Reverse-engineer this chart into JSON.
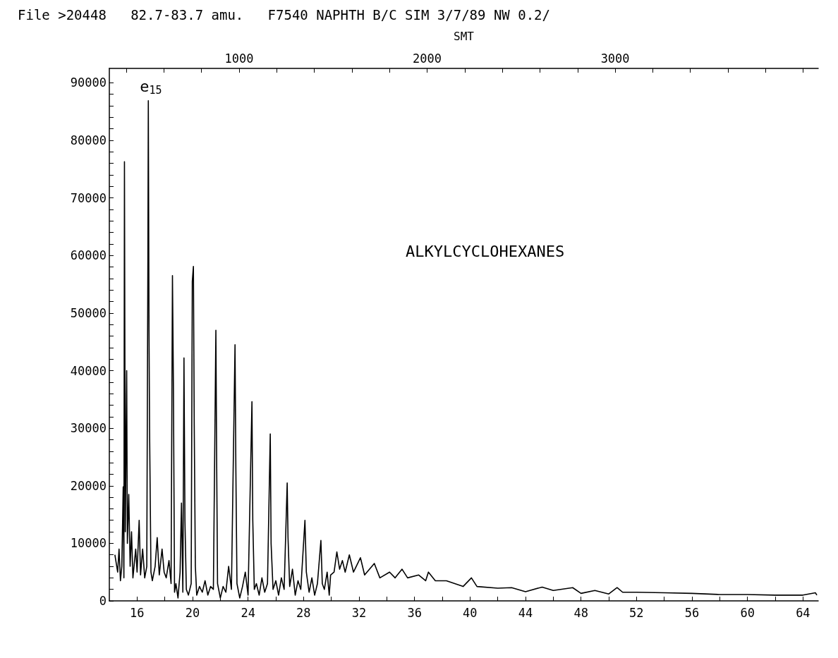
{
  "chart_data": {
    "type": "line",
    "title": "File >20448   82.7-83.7 amu.   F7540 NAPHTH B/C SIM 3/7/89 NW 0.2/",
    "x2label": "SMT",
    "marker": "none",
    "line_style": "solid",
    "annotations": [
      {
        "text": "e$_{15}$",
        "x": 16.81,
        "y": 86900
      },
      "ALKYLCYCLOHEXANES"
    ],
    "xlim": [
      14.0,
      65.1
    ],
    "xticks": [
      16,
      {
        "value": 18,
        "label": null
      },
      20,
      {
        "value": 22,
        "label": null
      },
      24,
      {
        "value": 26,
        "label": null
      },
      28,
      {
        "value": 30,
        "label": null
      },
      32,
      {
        "value": 34,
        "label": null
      },
      36,
      {
        "value": 38,
        "label": null
      },
      40,
      {
        "value": 42,
        "label": null
      },
      44,
      {
        "value": 46,
        "label": null
      },
      48,
      {
        "value": 50,
        "label": null
      },
      52,
      {
        "value": 54,
        "label": null
      },
      56,
      {
        "value": 58,
        "label": null
      },
      60,
      {
        "value": 62,
        "label": null
      },
      64
    ],
    "x2lim": [
      310,
      4080
    ],
    "x2ticks": [
      {
        "value": 400,
        "label": null
      },
      {
        "value": 600,
        "label": null
      },
      {
        "value": 800,
        "label": null
      },
      1000,
      {
        "value": 1200,
        "label": null
      },
      {
        "value": 1400,
        "label": null
      },
      {
        "value": 1600,
        "label": null
      },
      {
        "value": 1800,
        "label": null
      },
      2000,
      {
        "value": 2200,
        "label": null
      },
      {
        "value": 2400,
        "label": null
      },
      {
        "value": 2600,
        "label": null
      },
      {
        "value": 2800,
        "label": null
      },
      3000,
      {
        "value": 3200,
        "label": null
      },
      {
        "value": 3400,
        "label": null
      },
      {
        "value": 3600,
        "label": null
      },
      {
        "value": 3800,
        "label": null
      },
      {
        "value": 4000,
        "label": null
      }
    ],
    "ylim": [
      0,
      92500
    ],
    "yticks": [
      0,
      {
        "value": 2000,
        "label": null
      },
      {
        "value": 4000,
        "label": null
      },
      {
        "value": 6000,
        "label": null
      },
      {
        "value": 8000,
        "label": null
      },
      10000,
      {
        "value": 12000,
        "label": null
      },
      {
        "value": 14000,
        "label": null
      },
      {
        "value": 16000,
        "label": null
      },
      {
        "value": 18000,
        "label": null
      },
      20000,
      {
        "value": 22000,
        "label": null
      },
      {
        "value": 24000,
        "label": null
      },
      {
        "value": 26000,
        "label": null
      },
      {
        "value": 28000,
        "label": null
      },
      30000,
      {
        "value": 32000,
        "label": null
      },
      {
        "value": 34000,
        "label": null
      },
      {
        "value": 36000,
        "label": null
      },
      {
        "value": 38000,
        "label": null
      },
      40000,
      {
        "value": 42000,
        "label": null
      },
      {
        "value": 44000,
        "label": null
      },
      {
        "value": 46000,
        "label": null
      },
      {
        "value": 48000,
        "label": null
      },
      50000,
      {
        "value": 52000,
        "label": null
      },
      {
        "value": 54000,
        "label": null
      },
      {
        "value": 56000,
        "label": null
      },
      {
        "value": 58000,
        "label": null
      },
      60000,
      {
        "value": 62000,
        "label": null
      },
      {
        "value": 64000,
        "label": null
      },
      {
        "value": 66000,
        "label": null
      },
      {
        "value": 68000,
        "label": null
      },
      70000,
      {
        "value": 72000,
        "label": null
      },
      {
        "value": 74000,
        "label": null
      },
      {
        "value": 76000,
        "label": null
      },
      {
        "value": 78000,
        "label": null
      },
      80000,
      {
        "value": 82000,
        "label": null
      },
      {
        "value": 84000,
        "label": null
      },
      {
        "value": 86000,
        "label": null
      },
      {
        "value": 88000,
        "label": null
      },
      90000
    ],
    "series": [
      {
        "color": "#000000",
        "x": [
          14.4,
          14.6,
          14.7,
          14.8,
          14.9,
          15.0,
          15.05,
          15.09,
          15.15,
          15.25,
          15.3,
          15.4,
          15.5,
          15.6,
          15.7,
          15.9,
          16.0,
          16.15,
          16.25,
          16.4,
          16.55,
          16.7,
          16.78,
          16.81,
          16.86,
          16.9,
          17.0,
          17.1,
          17.3,
          17.45,
          17.6,
          17.8,
          17.95,
          18.1,
          18.3,
          18.45,
          18.55,
          18.62,
          18.7,
          18.8,
          18.95,
          19.1,
          19.2,
          19.3,
          19.38,
          19.45,
          19.55,
          19.7,
          19.9,
          19.98,
          20.06,
          20.12,
          20.2,
          20.3,
          20.5,
          20.7,
          20.9,
          21.1,
          21.3,
          21.5,
          21.68,
          21.74,
          21.8,
          22.0,
          22.2,
          22.4,
          22.6,
          22.8,
          23.06,
          23.12,
          23.2,
          23.4,
          23.6,
          23.8,
          24.0,
          24.28,
          24.34,
          24.45,
          24.6,
          24.8,
          25.0,
          25.2,
          25.4,
          25.6,
          25.66,
          25.8,
          26.0,
          26.2,
          26.4,
          26.6,
          26.82,
          26.88,
          27.0,
          27.2,
          27.4,
          27.6,
          27.8,
          28.1,
          28.2,
          28.4,
          28.6,
          28.8,
          29.0,
          29.25,
          29.35,
          29.5,
          29.7,
          29.85,
          29.95,
          30.2,
          30.4,
          30.6,
          30.8,
          31.0,
          31.3,
          31.6,
          32.1,
          32.4,
          33.1,
          33.5,
          34.2,
          34.6,
          35.1,
          35.5,
          36.3,
          36.8,
          37.0,
          37.5,
          38.3,
          39.5,
          40.1,
          40.5,
          42.0,
          43.0,
          44.0,
          45.2,
          46.0,
          47.4,
          48.0,
          49.0,
          50.0,
          50.6,
          51.0,
          52.0,
          54.0,
          56.0,
          58.0,
          60.0,
          62.0,
          64.0,
          64.9,
          65.0
        ],
        "values": [
          8000,
          5000,
          9000,
          3500,
          6000,
          19800,
          4000,
          76300,
          12000,
          40000,
          10000,
          18500,
          6000,
          12000,
          4000,
          9000,
          5000,
          14000,
          4500,
          9000,
          4000,
          6000,
          60000,
          86900,
          47000,
          30000,
          5000,
          3500,
          6000,
          11000,
          4500,
          9000,
          5000,
          4000,
          7000,
          3000,
          56500,
          37000,
          1500,
          3000,
          500,
          5000,
          17000,
          1500,
          42200,
          14000,
          2000,
          1000,
          3000,
          55500,
          58100,
          30500,
          6000,
          1000,
          2500,
          1500,
          3500,
          1000,
          2500,
          2000,
          47000,
          23000,
          3000,
          500,
          2500,
          1500,
          6000,
          2000,
          44500,
          23000,
          3000,
          500,
          2500,
          5000,
          1000,
          34600,
          14000,
          2000,
          3000,
          1000,
          4000,
          1500,
          3000,
          29000,
          10000,
          2000,
          3500,
          1000,
          4000,
          2000,
          20500,
          11000,
          2500,
          5500,
          1000,
          3500,
          2000,
          14000,
          5000,
          1500,
          4000,
          1000,
          3000,
          10500,
          3000,
          2000,
          5000,
          1000,
          4500,
          5000,
          8500,
          5500,
          7000,
          5000,
          8000,
          5000,
          7500,
          4500,
          6500,
          4000,
          5000,
          4000,
          5500,
          4000,
          4500,
          3500,
          5000,
          3500,
          3500,
          2500,
          4000,
          2500,
          2200,
          2300,
          1600,
          2400,
          1800,
          2300,
          1300,
          1800,
          1200,
          2300,
          1500,
          1500,
          1400,
          1300,
          1100,
          1100,
          1000,
          1000,
          1400,
          1000
        ]
      }
    ]
  }
}
